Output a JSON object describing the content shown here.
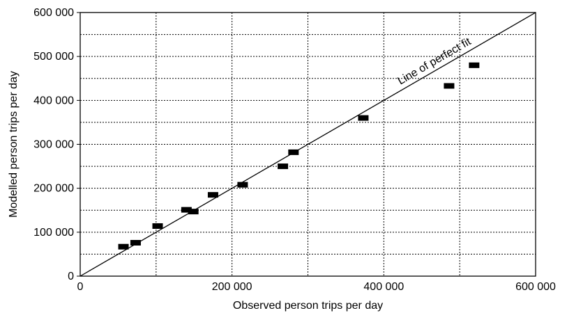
{
  "chart_data": {
    "type": "scatter",
    "title": "",
    "xlabel": "Observed person trips per day",
    "ylabel": "Modelled person trips per day",
    "xlim": [
      0,
      600000
    ],
    "ylim": [
      0,
      600000
    ],
    "x_ticks": [
      0,
      200000,
      400000,
      600000
    ],
    "x_tick_labels": [
      "0",
      "200 000",
      "400 000",
      "600 000"
    ],
    "y_ticks": [
      0,
      100000,
      200000,
      300000,
      400000,
      500000,
      600000
    ],
    "y_tick_labels": [
      "0",
      "100 000",
      "200 000",
      "300 000",
      "400 000",
      "500 000",
      "600 000"
    ],
    "grid": true,
    "grid_style": "dotted",
    "x_grid_step": 100000,
    "y_grid_step": 50000,
    "marker": "filled-rectangle",
    "marker_color": "#000000",
    "points": [
      {
        "x": 57000,
        "y": 67000
      },
      {
        "x": 73000,
        "y": 76000
      },
      {
        "x": 102000,
        "y": 114000
      },
      {
        "x": 140000,
        "y": 151000
      },
      {
        "x": 149000,
        "y": 147000
      },
      {
        "x": 175000,
        "y": 185000
      },
      {
        "x": 214000,
        "y": 208000
      },
      {
        "x": 267000,
        "y": 250000
      },
      {
        "x": 281000,
        "y": 282000
      },
      {
        "x": 373000,
        "y": 360000
      },
      {
        "x": 486000,
        "y": 433000
      },
      {
        "x": 519000,
        "y": 480000
      }
    ],
    "reference_line": {
      "label": "Line of perfect fit",
      "from": [
        0,
        0
      ],
      "to": [
        600000,
        600000
      ]
    }
  }
}
